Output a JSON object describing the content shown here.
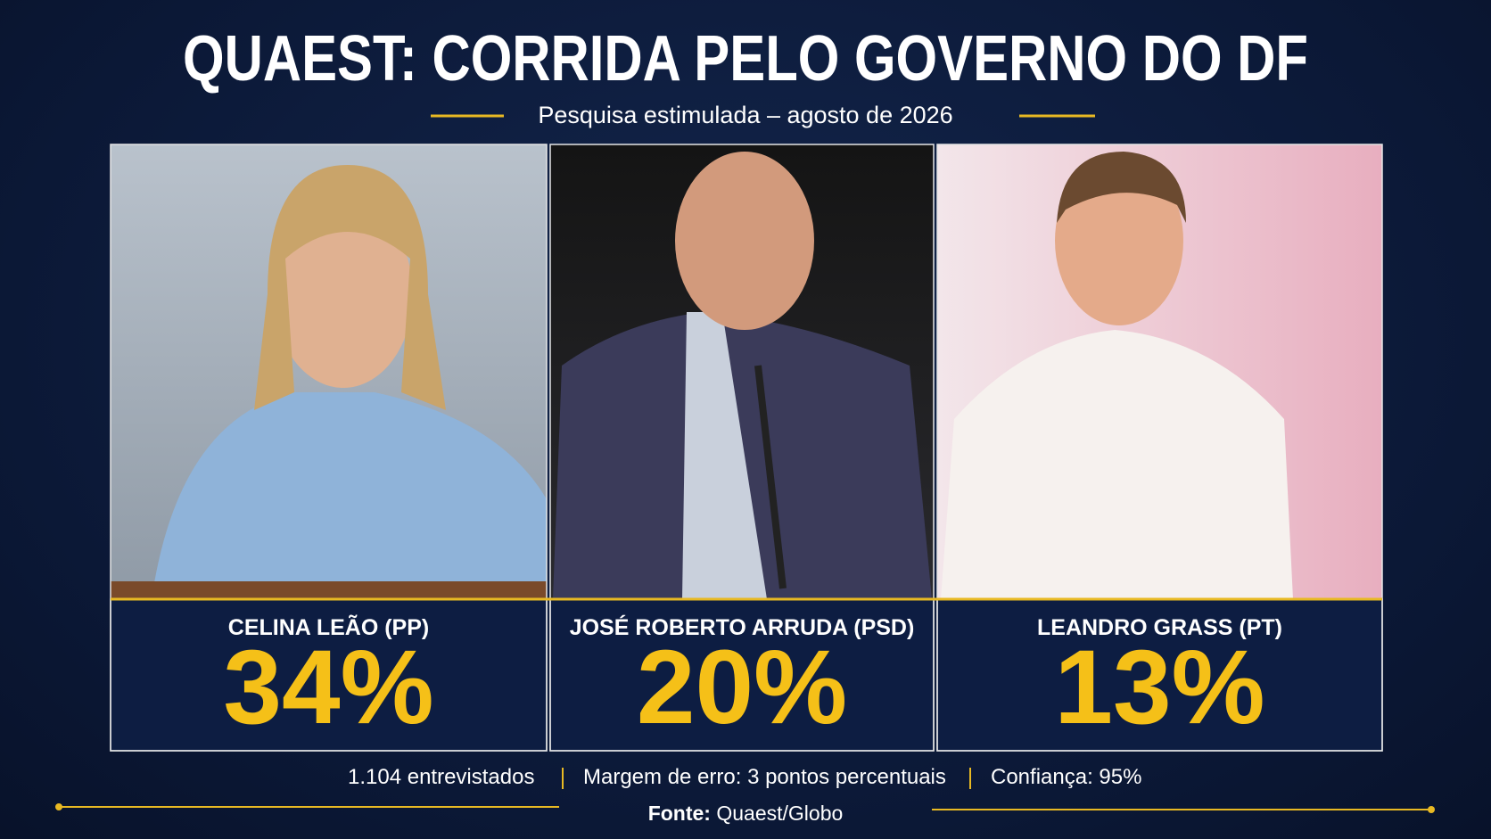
{
  "header": {
    "title": "QUAEST: CORRIDA PELO GOVERNO DO DF",
    "subtitle": "Pesquisa estimulada – agosto de 2026"
  },
  "candidates": [
    {
      "name": "CELINA LEÃO (PP)",
      "percent": "34%"
    },
    {
      "name": "JOSÉ ROBERTO ARRUDA (PSD)",
      "percent": "20%"
    },
    {
      "name": "LEANDRO GRASS (PT)",
      "percent": "13%"
    }
  ],
  "footer": {
    "details": [
      "1.104 entrevistados",
      "Margem de erro: 3 pontos percentuais",
      "Confiança: 95%"
    ],
    "source_label": "Fonte:",
    "source": "Quaest/Globo"
  }
}
